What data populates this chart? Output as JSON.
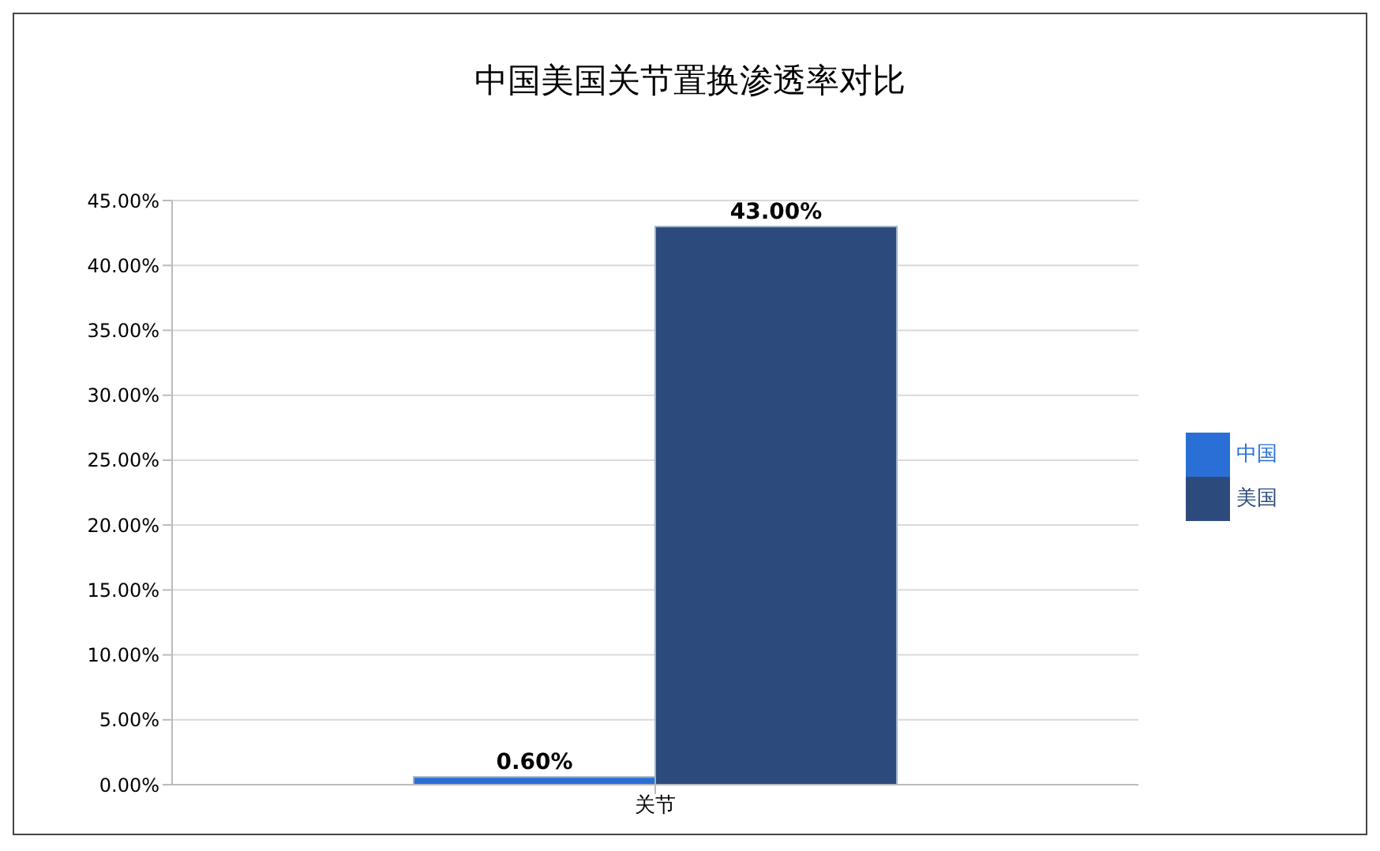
{
  "chart_data": {
    "type": "bar",
    "title": "中国美国关节置换渗透率对比",
    "categories": [
      "关节"
    ],
    "series": [
      {
        "name": "中国",
        "color": "#2a6fd6",
        "values": [
          0.6
        ],
        "value_labels": [
          "0.60%"
        ]
      },
      {
        "name": "美国",
        "color": "#2c4a7c",
        "values": [
          43
        ],
        "value_labels": [
          "43.00%"
        ]
      }
    ],
    "ylim": [
      0,
      45
    ],
    "yticks": [
      {
        "value": 0,
        "label": "0.00%"
      },
      {
        "value": 5,
        "label": "5.00%"
      },
      {
        "value": 10,
        "label": "10.00%"
      },
      {
        "value": 15,
        "label": "15.00%"
      },
      {
        "value": 20,
        "label": "20.00%"
      },
      {
        "value": 25,
        "label": "25.00%"
      },
      {
        "value": 30,
        "label": "30.00%"
      },
      {
        "value": 35,
        "label": "35.00%"
      },
      {
        "value": 40,
        "label": "40.00%"
      },
      {
        "value": 45,
        "label": "45.00%"
      }
    ],
    "grid": "y",
    "legend": "right"
  }
}
